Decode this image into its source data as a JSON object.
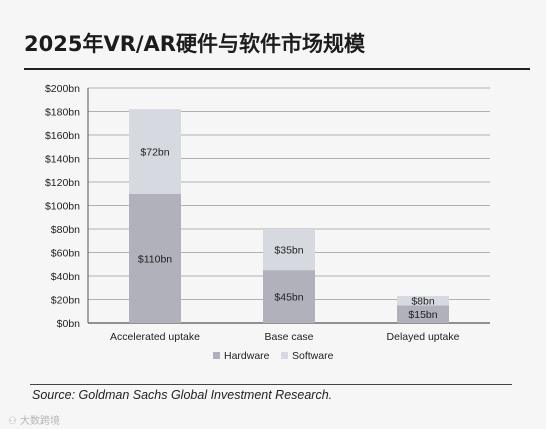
{
  "title": "2025年VR/AR硬件与软件市场规模",
  "source": "Source: Goldman Sachs Global Investment Research.",
  "brand_label": "大数跨境",
  "chart_data": {
    "type": "bar",
    "stacked": true,
    "title": "2025年VR/AR硬件与软件市场规模",
    "categories": [
      "Accelerated uptake",
      "Base case",
      "Delayed uptake"
    ],
    "series": [
      {
        "name": "Hardware",
        "values": [
          110,
          45,
          15
        ],
        "labels": [
          "$110bn",
          "$45bn",
          "$15bn"
        ],
        "color": "#b1b1bb"
      },
      {
        "name": "Software",
        "values": [
          72,
          35,
          8
        ],
        "labels": [
          "$72bn",
          "$35bn",
          "$8bn"
        ],
        "color": "#d6d9e0"
      }
    ],
    "ylim": [
      0,
      200
    ],
    "yticks": [
      0,
      20,
      40,
      60,
      80,
      100,
      120,
      140,
      160,
      180,
      200
    ],
    "ytick_labels": [
      "$0bn",
      "$20bn",
      "$40bn",
      "$60bn",
      "$80bn",
      "$100bn",
      "$120bn",
      "$140bn",
      "$160bn",
      "$180bn",
      "$200bn"
    ],
    "grid": true,
    "legend": "bottom-center",
    "xlabel": "",
    "ylabel": ""
  }
}
